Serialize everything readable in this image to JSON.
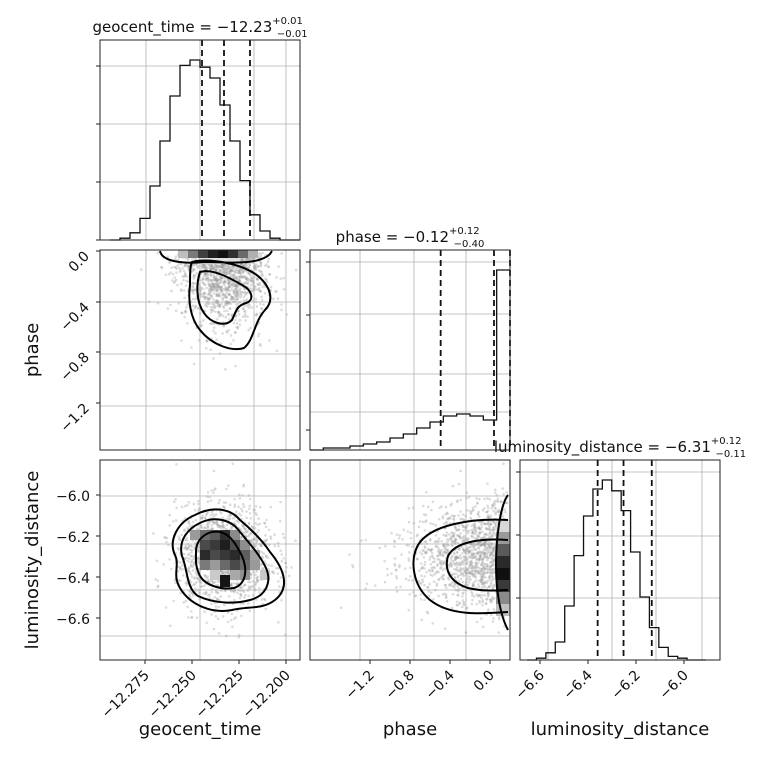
{
  "chart_data": [
    {
      "type": "histogram",
      "panel": "geocent_time",
      "title": {
        "param": "geocent_time",
        "median": "−12.23",
        "plus": "+0.01",
        "minus": "−0.01"
      },
      "xlim": [
        -12.295,
        -12.195
      ],
      "bin_edges": [
        -12.29,
        -12.285,
        -12.28,
        -12.275,
        -12.27,
        -12.265,
        -12.26,
        -12.255,
        -12.25,
        -12.245,
        -12.24,
        -12.235,
        -12.23,
        -12.225,
        -12.22,
        -12.215,
        -12.21,
        -12.205,
        -12.2,
        -12.195
      ],
      "density": [
        0.0,
        0.01,
        0.04,
        0.12,
        0.3,
        0.55,
        0.8,
        0.97,
        1.0,
        0.96,
        0.9,
        0.75,
        0.55,
        0.33,
        0.14,
        0.05,
        0.01,
        0.0,
        0.0
      ],
      "quantiles": [
        -12.244,
        -12.233,
        -12.22
      ]
    },
    {
      "type": "histogram",
      "panel": "phase",
      "title": {
        "param": "phase",
        "median": "−0.12",
        "plus": "+0.12",
        "minus": "−0.40"
      },
      "xlim": [
        -1.5,
        0.0
      ],
      "xticks": [
        "−1.2",
        "−0.8",
        "−0.4",
        "0.0"
      ],
      "bin_edges": [
        -1.5,
        -1.4,
        -1.3,
        -1.2,
        -1.1,
        -1.0,
        -0.9,
        -0.8,
        -0.7,
        -0.6,
        -0.5,
        -0.4,
        -0.3,
        -0.2,
        -0.1,
        0.0
      ],
      "density": [
        0.0,
        0.01,
        0.01,
        0.02,
        0.03,
        0.04,
        0.06,
        0.08,
        0.11,
        0.14,
        0.17,
        0.18,
        0.17,
        0.15,
        0.9
      ],
      "quantiles": [
        -0.52,
        -0.12,
        0.0
      ]
    },
    {
      "type": "histogram",
      "panel": "luminosity_distance",
      "title": {
        "param": "luminosity_distance",
        "median": "−6.31",
        "plus": "+0.12",
        "minus": "−0.11"
      },
      "xlim": [
        -6.75,
        -5.9
      ],
      "xticks": [
        "−6.6",
        "−6.4",
        "−6.2",
        "−6.0"
      ],
      "bin_edges": [
        -6.72,
        -6.68,
        -6.64,
        -6.6,
        -6.56,
        -6.52,
        -6.48,
        -6.44,
        -6.4,
        -6.36,
        -6.32,
        -6.28,
        -6.24,
        -6.2,
        -6.16,
        -6.12,
        -6.08,
        -6.04,
        -6.0,
        -5.96
      ],
      "density": [
        0.0,
        0.01,
        0.04,
        0.1,
        0.3,
        0.58,
        0.8,
        0.95,
        1.0,
        0.94,
        0.83,
        0.6,
        0.35,
        0.18,
        0.07,
        0.02,
        0.01,
        0.0,
        0.0
      ],
      "quantiles": [
        -6.42,
        -6.31,
        -6.19
      ]
    },
    {
      "type": "scatter",
      "panel": "phase vs geocent_time",
      "xlabel": "",
      "ylabel": "phase",
      "xlim": [
        -12.295,
        -12.195
      ],
      "ylim": [
        -1.55,
        0.0
      ],
      "yticks": [
        "0.0",
        "−0.4",
        "−0.8",
        "−1.2"
      ],
      "center": [
        -12.233,
        -0.16
      ],
      "spread": [
        0.011,
        0.26
      ]
    },
    {
      "type": "scatter",
      "panel": "luminosity_distance vs geocent_time",
      "xlabel": "geocent_time",
      "ylabel": "luminosity_distance",
      "xlim": [
        -12.295,
        -12.195
      ],
      "ylim": [
        -6.75,
        -5.9
      ],
      "xticks": [
        "−12.275",
        "−12.250",
        "−12.225",
        "−12.200"
      ],
      "yticks": [
        "−6.0",
        "−6.2",
        "−6.4",
        "−6.6"
      ],
      "center": [
        -12.233,
        -6.31
      ],
      "spread": [
        0.012,
        0.11
      ]
    },
    {
      "type": "scatter",
      "panel": "luminosity_distance vs phase",
      "xlabel": "phase",
      "ylabel": "",
      "xlim": [
        -1.5,
        0.0
      ],
      "ylim": [
        -6.75,
        -5.9
      ],
      "center": [
        -0.2,
        -6.31
      ],
      "spread": [
        0.35,
        0.11
      ]
    }
  ],
  "labels": {
    "x_bottom_left": "geocent_time",
    "x_bottom_mid": "phase",
    "x_bottom_right": "luminosity_distance",
    "y_mid": "phase",
    "y_bottom": "luminosity_distance"
  }
}
